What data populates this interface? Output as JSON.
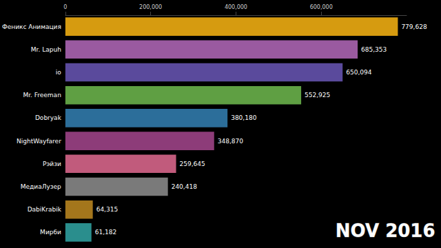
{
  "chart_data": {
    "type": "bar",
    "orientation": "horizontal",
    "categories": [
      "Феникс Анимация",
      "Mr. Lapuh",
      "io",
      "Mr. Freeman",
      "Dobryak",
      "NightWayfarer",
      "Рэйзи",
      "МедиаЛузер",
      "DabiKrabik",
      "Мирби"
    ],
    "values": [
      779628,
      685353,
      650094,
      552925,
      380180,
      348870,
      259645,
      240418,
      64315,
      61182
    ],
    "value_labels": [
      "779,628",
      "685,353",
      "650,094",
      "552,925",
      "380,180",
      "348,870",
      "259,645",
      "240,418",
      "64,315",
      "61,182"
    ],
    "colors": [
      "#d69b10",
      "#9a5aa0",
      "#5a4a9c",
      "#5f9f43",
      "#2c6e9a",
      "#8d3c79",
      "#c15b7c",
      "#7a7a7a",
      "#a4761c",
      "#2a8e8d"
    ],
    "xlim": [
      0,
      800000
    ],
    "xticks": [
      0,
      {
        "value": 200000,
        "label": "200,000"
      },
      {
        "value": 400000,
        "label": "400,000"
      },
      {
        "value": 600000,
        "label": "600,000"
      }
    ],
    "data_labels": true,
    "grid": false,
    "annotations": [
      "NOV 2016"
    ]
  }
}
